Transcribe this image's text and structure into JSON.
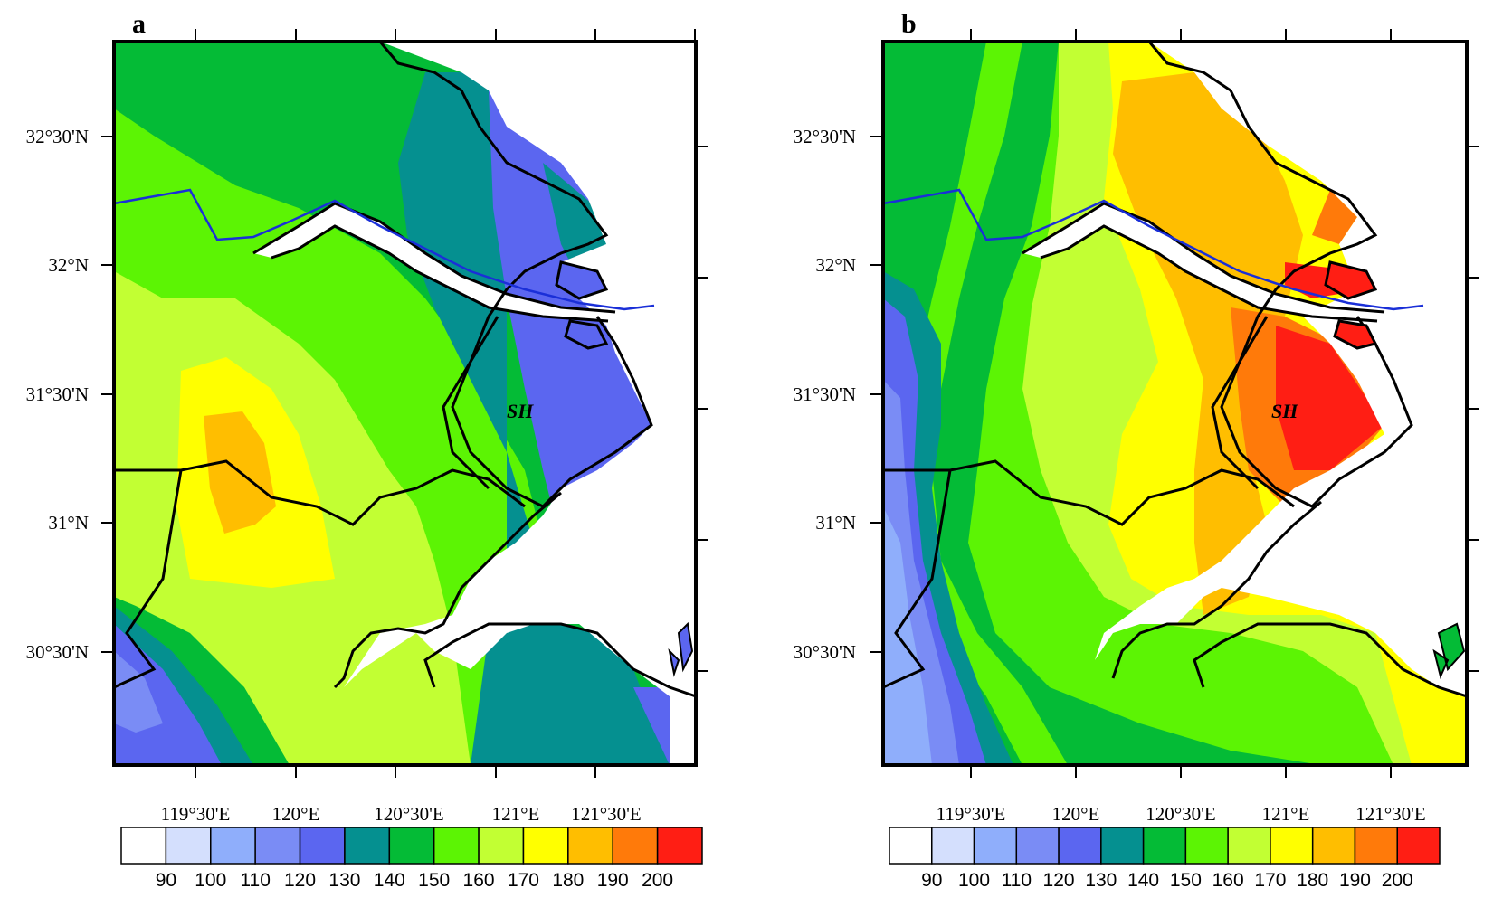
{
  "panels": [
    {
      "letter": "a",
      "lat_labels": [
        "32°30'N",
        "32°N",
        "31°30'N",
        "31°N",
        "30°30'N"
      ],
      "lon_labels": [
        "119°30'E",
        "120°E",
        "120°30'E",
        "121°E",
        "121°30'E"
      ],
      "city": "SH",
      "colorbar_labels": [
        "90",
        "100",
        "110",
        "120",
        "130",
        "140",
        "150",
        "160",
        "170",
        "180",
        "190",
        "200"
      ]
    },
    {
      "letter": "b",
      "lat_labels": [
        "32°30'N",
        "32°N",
        "31°30'N",
        "31°N",
        "30°30'N"
      ],
      "lon_labels": [
        "119°30'E",
        "120°E",
        "120°30'E",
        "121°E",
        "121°30'E"
      ],
      "city": "SH",
      "colorbar_labels": [
        "90",
        "100",
        "110",
        "120",
        "130",
        "140",
        "150",
        "160",
        "170",
        "180",
        "190",
        "200"
      ]
    }
  ],
  "colors": {
    "levels": [
      "#ffffff",
      "#d4dffd",
      "#8faefb",
      "#7a8cf5",
      "#5b66f0",
      "#059090",
      "#04bb36",
      "#5cf404",
      "#c2ff33",
      "#ffff00",
      "#ffbe00",
      "#ff7a0a",
      "#ff1e14"
    ],
    "land_border": "#000000",
    "river": "#1a2fd8",
    "water": "#ffffff"
  }
}
